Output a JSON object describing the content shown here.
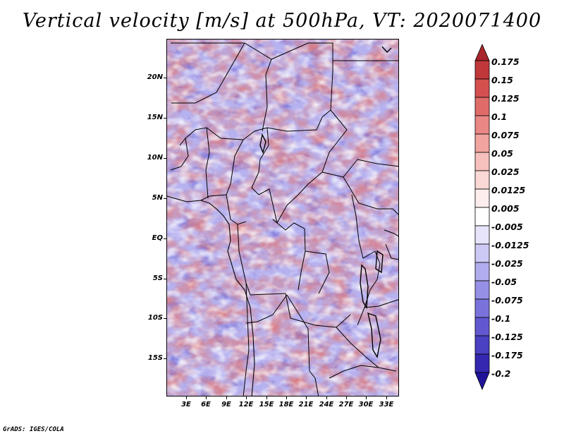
{
  "title": "Vertical velocity [m/s] at 500hPa, VT: 2020071400",
  "lat_labels": [
    "20N",
    "15N",
    "10N",
    "5N",
    "EQ",
    "5S",
    "10S",
    "15S"
  ],
  "lon_labels": [
    "3E",
    "6E",
    "9E",
    "12E",
    "15E",
    "18E",
    "21E",
    "24E",
    "27E",
    "30E",
    "33E"
  ],
  "colorbar": {
    "levels": [
      "0.175",
      "0.15",
      "0.125",
      "0.1",
      "0.075",
      "0.05",
      "0.025",
      "0.0125",
      "0.005",
      "-0.005",
      "-0.0125",
      "-0.025",
      "-0.05",
      "-0.075",
      "-0.1",
      "-0.125",
      "-0.175",
      "-0.2"
    ],
    "colors": [
      "#a8262c",
      "#c0383a",
      "#d4504f",
      "#e06c6a",
      "#e98885",
      "#f1a4a0",
      "#f6c0bc",
      "#fad8d5",
      "#fdeeed",
      "#ffffff",
      "#e6e4fa",
      "#ccc9f5",
      "#b1acee",
      "#9690e6",
      "#7b73dc",
      "#6158d0",
      "#4a40c2",
      "#3428b0",
      "#20139a"
    ]
  },
  "credit": "GrADS: IGES/COLA"
}
